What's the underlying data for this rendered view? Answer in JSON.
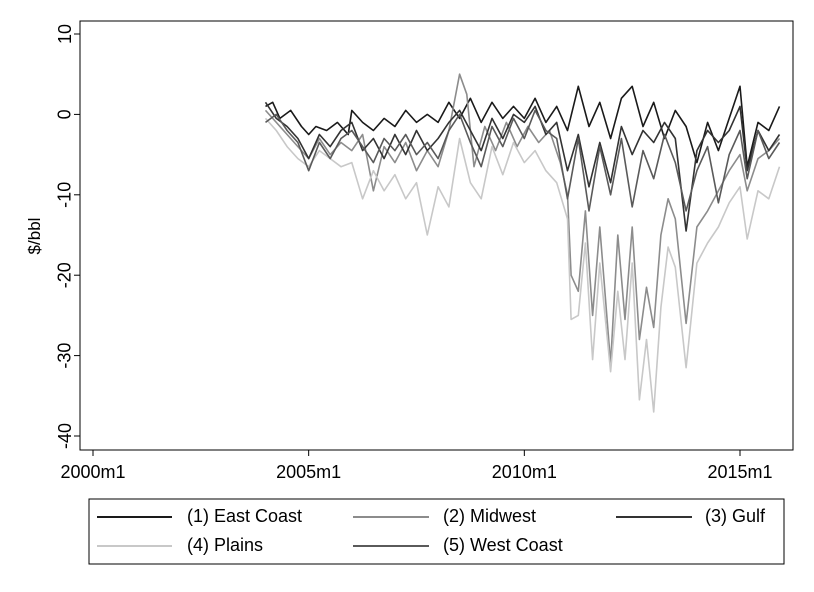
{
  "chart_data": {
    "type": "line",
    "title": "",
    "xlabel": "",
    "ylabel": "$/bbl",
    "xlim": [
      "2000m1",
      "2015m12"
    ],
    "ylim": [
      -42,
      10
    ],
    "x_ticks": [
      "2000m1",
      "2005m1",
      "2010m1",
      "2015m1"
    ],
    "y_ticks": [
      10,
      0,
      -10,
      -20,
      -30,
      -40
    ],
    "grid": false,
    "legend_position": "bottom",
    "series": [
      {
        "name": "(1) East Coast",
        "color": "#1a1a1a",
        "points": [
          [
            "2004m1",
            1.0
          ],
          [
            "2004m3",
            1.5
          ],
          [
            "2004m5",
            -0.5
          ],
          [
            "2004m8",
            0.5
          ],
          [
            "2004m11",
            -1.5
          ],
          [
            "2005m1",
            -2.5
          ],
          [
            "2005m3",
            -1.5
          ],
          [
            "2005m6",
            -2.0
          ],
          [
            "2005m9",
            -1.0
          ],
          [
            "2005m12",
            -2.5
          ],
          [
            "2006m1",
            0.5
          ],
          [
            "2006m4",
            -1.0
          ],
          [
            "2006m7",
            -2.0
          ],
          [
            "2006m10",
            -0.5
          ],
          [
            "2007m1",
            -1.5
          ],
          [
            "2007m4",
            0.5
          ],
          [
            "2007m7",
            -1.0
          ],
          [
            "2007m10",
            0.0
          ],
          [
            "2008m1",
            -1.0
          ],
          [
            "2008m4",
            1.5
          ],
          [
            "2008m7",
            -0.5
          ],
          [
            "2008m10",
            2.0
          ],
          [
            "2009m1",
            -1.0
          ],
          [
            "2009m4",
            1.5
          ],
          [
            "2009m7",
            -0.5
          ],
          [
            "2009m10",
            1.0
          ],
          [
            "2010m1",
            -0.5
          ],
          [
            "2010m4",
            2.0
          ],
          [
            "2010m7",
            -1.0
          ],
          [
            "2010m10",
            1.0
          ],
          [
            "2011m1",
            -2.0
          ],
          [
            "2011m4",
            3.5
          ],
          [
            "2011m7",
            -1.5
          ],
          [
            "2011m10",
            1.5
          ],
          [
            "2012m1",
            -3.0
          ],
          [
            "2012m4",
            2.0
          ],
          [
            "2012m7",
            3.5
          ],
          [
            "2012m10",
            -1.5
          ],
          [
            "2013m1",
            1.5
          ],
          [
            "2013m4",
            -3.0
          ],
          [
            "2013m7",
            0.5
          ],
          [
            "2013m10",
            -1.5
          ],
          [
            "2014m1",
            -6.0
          ],
          [
            "2014m4",
            -1.0
          ],
          [
            "2014m7",
            -4.5
          ],
          [
            "2014m10",
            -0.5
          ],
          [
            "2015m1",
            3.5
          ],
          [
            "2015m3",
            -6.5
          ],
          [
            "2015m6",
            -1.0
          ],
          [
            "2015m9",
            -2.0
          ],
          [
            "2015m12",
            1.0
          ]
        ]
      },
      {
        "name": "(2) Midwest",
        "color": "#8c8c8c",
        "points": [
          [
            "2004m1",
            0.5
          ],
          [
            "2004m4",
            -1.0
          ],
          [
            "2004m7",
            -2.5
          ],
          [
            "2004m10",
            -4.0
          ],
          [
            "2005m1",
            -5.5
          ],
          [
            "2005m4",
            -3.0
          ],
          [
            "2005m7",
            -5.0
          ],
          [
            "2005m10",
            -3.5
          ],
          [
            "2006m1",
            -4.5
          ],
          [
            "2006m4",
            -2.5
          ],
          [
            "2006m7",
            -9.5
          ],
          [
            "2006m10",
            -4.0
          ],
          [
            "2007m1",
            -6.0
          ],
          [
            "2007m4",
            -3.5
          ],
          [
            "2007m7",
            -7.0
          ],
          [
            "2007m10",
            -4.5
          ],
          [
            "2008m1",
            -6.5
          ],
          [
            "2008m4",
            -2.0
          ],
          [
            "2008m7",
            5.0
          ],
          [
            "2008m9",
            2.5
          ],
          [
            "2008m11",
            -6.5
          ],
          [
            "2009m2",
            -1.5
          ],
          [
            "2009m5",
            -4.5
          ],
          [
            "2009m8",
            -1.0
          ],
          [
            "2009m11",
            -4.0
          ],
          [
            "2010m2",
            -1.5
          ],
          [
            "2010m5",
            -3.5
          ],
          [
            "2010m8",
            -2.0
          ],
          [
            "2010m11",
            -6.0
          ],
          [
            "2011m1",
            -10.0
          ],
          [
            "2011m2",
            -20.0
          ],
          [
            "2011m4",
            -22.0
          ],
          [
            "2011m6",
            -12.0
          ],
          [
            "2011m8",
            -25.0
          ],
          [
            "2011m10",
            -14.0
          ],
          [
            "2012m1",
            -31.0
          ],
          [
            "2012m3",
            -15.0
          ],
          [
            "2012m5",
            -25.5
          ],
          [
            "2012m7",
            -14.0
          ],
          [
            "2012m9",
            -28.0
          ],
          [
            "2012m11",
            -21.5
          ],
          [
            "2013m1",
            -26.5
          ],
          [
            "2013m3",
            -15.0
          ],
          [
            "2013m5",
            -10.5
          ],
          [
            "2013m7",
            -13.0
          ],
          [
            "2013m10",
            -26.0
          ],
          [
            "2014m1",
            -14.0
          ],
          [
            "2014m4",
            -12.0
          ],
          [
            "2014m7",
            -9.5
          ],
          [
            "2014m10",
            -7.0
          ],
          [
            "2015m1",
            -5.0
          ],
          [
            "2015m3",
            -9.5
          ],
          [
            "2015m6",
            -5.5
          ],
          [
            "2015m9",
            -4.5
          ],
          [
            "2015m12",
            -3.0
          ]
        ]
      },
      {
        "name": "(3) Gulf",
        "color": "#333333",
        "points": [
          [
            "2004m1",
            1.5
          ],
          [
            "2004m4",
            -0.5
          ],
          [
            "2004m7",
            -1.5
          ],
          [
            "2004m10",
            -3.0
          ],
          [
            "2005m1",
            -5.5
          ],
          [
            "2005m4",
            -2.5
          ],
          [
            "2005m7",
            -4.0
          ],
          [
            "2005m10",
            -2.0
          ],
          [
            "2006m1",
            -1.0
          ],
          [
            "2006m4",
            -4.5
          ],
          [
            "2006m7",
            -3.0
          ],
          [
            "2006m10",
            -5.5
          ],
          [
            "2007m1",
            -2.5
          ],
          [
            "2007m4",
            -5.0
          ],
          [
            "2007m7",
            -2.0
          ],
          [
            "2007m10",
            -4.5
          ],
          [
            "2008m1",
            -3.0
          ],
          [
            "2008m4",
            -1.0
          ],
          [
            "2008m7",
            0.5
          ],
          [
            "2008m10",
            -2.0
          ],
          [
            "2009m1",
            -4.5
          ],
          [
            "2009m4",
            -0.5
          ],
          [
            "2009m7",
            -3.0
          ],
          [
            "2009m10",
            0.0
          ],
          [
            "2010m1",
            -1.0
          ],
          [
            "2010m4",
            1.0
          ],
          [
            "2010m7",
            -2.5
          ],
          [
            "2010m10",
            -1.0
          ],
          [
            "2011m1",
            -7.0
          ],
          [
            "2011m4",
            -2.5
          ],
          [
            "2011m7",
            -9.0
          ],
          [
            "2011m10",
            -3.5
          ],
          [
            "2012m1",
            -8.5
          ],
          [
            "2012m4",
            -1.5
          ],
          [
            "2012m7",
            -5.0
          ],
          [
            "2012m10",
            -2.0
          ],
          [
            "2013m1",
            -3.5
          ],
          [
            "2013m4",
            -1.0
          ],
          [
            "2013m7",
            -3.0
          ],
          [
            "2013m10",
            -14.5
          ],
          [
            "2014m1",
            -4.5
          ],
          [
            "2014m4",
            -2.0
          ],
          [
            "2014m7",
            -3.5
          ],
          [
            "2014m10",
            -2.0
          ],
          [
            "2015m1",
            1.0
          ],
          [
            "2015m3",
            -7.0
          ],
          [
            "2015m6",
            -2.0
          ],
          [
            "2015m9",
            -4.5
          ],
          [
            "2015m12",
            -2.5
          ]
        ]
      },
      {
        "name": "(4) Plains",
        "color": "#c8c8c8",
        "points": [
          [
            "2004m1",
            -0.5
          ],
          [
            "2004m4",
            -2.0
          ],
          [
            "2004m7",
            -4.0
          ],
          [
            "2004m10",
            -5.5
          ],
          [
            "2005m1",
            -6.5
          ],
          [
            "2005m4",
            -4.5
          ],
          [
            "2005m7",
            -5.5
          ],
          [
            "2005m10",
            -6.5
          ],
          [
            "2006m1",
            -6.0
          ],
          [
            "2006m4",
            -10.5
          ],
          [
            "2006m7",
            -7.0
          ],
          [
            "2006m10",
            -9.5
          ],
          [
            "2007m1",
            -7.5
          ],
          [
            "2007m4",
            -10.5
          ],
          [
            "2007m7",
            -8.5
          ],
          [
            "2007m10",
            -15.0
          ],
          [
            "2008m1",
            -9.0
          ],
          [
            "2008m4",
            -11.5
          ],
          [
            "2008m7",
            -3.0
          ],
          [
            "2008m10",
            -8.5
          ],
          [
            "2009m1",
            -10.5
          ],
          [
            "2009m4",
            -4.0
          ],
          [
            "2009m7",
            -7.5
          ],
          [
            "2009m10",
            -3.5
          ],
          [
            "2010m1",
            -6.0
          ],
          [
            "2010m4",
            -4.5
          ],
          [
            "2010m7",
            -7.0
          ],
          [
            "2010m10",
            -8.5
          ],
          [
            "2011m1",
            -13.0
          ],
          [
            "2011m2",
            -25.5
          ],
          [
            "2011m4",
            -25.0
          ],
          [
            "2011m6",
            -16.0
          ],
          [
            "2011m8",
            -30.5
          ],
          [
            "2011m10",
            -18.5
          ],
          [
            "2012m1",
            -32.0
          ],
          [
            "2012m3",
            -22.0
          ],
          [
            "2012m5",
            -30.5
          ],
          [
            "2012m7",
            -18.5
          ],
          [
            "2012m9",
            -35.5
          ],
          [
            "2012m11",
            -28.0
          ],
          [
            "2013m1",
            -37.0
          ],
          [
            "2013m3",
            -24.0
          ],
          [
            "2013m5",
            -16.5
          ],
          [
            "2013m7",
            -19.0
          ],
          [
            "2013m10",
            -31.5
          ],
          [
            "2014m1",
            -18.5
          ],
          [
            "2014m4",
            -16.0
          ],
          [
            "2014m7",
            -14.0
          ],
          [
            "2014m10",
            -11.0
          ],
          [
            "2015m1",
            -9.0
          ],
          [
            "2015m3",
            -15.5
          ],
          [
            "2015m6",
            -9.5
          ],
          [
            "2015m9",
            -10.5
          ],
          [
            "2015m12",
            -6.5
          ]
        ]
      },
      {
        "name": "(5) West Coast",
        "color": "#5a5a5a",
        "points": [
          [
            "2004m1",
            -1.0
          ],
          [
            "2004m4",
            0.0
          ],
          [
            "2004m7",
            -2.0
          ],
          [
            "2004m10",
            -3.5
          ],
          [
            "2005m1",
            -7.0
          ],
          [
            "2005m4",
            -3.5
          ],
          [
            "2005m7",
            -5.5
          ],
          [
            "2005m10",
            -3.0
          ],
          [
            "2006m1",
            -2.0
          ],
          [
            "2006m4",
            -4.0
          ],
          [
            "2006m7",
            -6.0
          ],
          [
            "2006m10",
            -3.0
          ],
          [
            "2007m1",
            -4.5
          ],
          [
            "2007m4",
            -2.5
          ],
          [
            "2007m7",
            -5.0
          ],
          [
            "2007m10",
            -3.5
          ],
          [
            "2008m1",
            -5.5
          ],
          [
            "2008m4",
            -2.0
          ],
          [
            "2008m7",
            0.0
          ],
          [
            "2008m10",
            -3.5
          ],
          [
            "2009m1",
            -6.5
          ],
          [
            "2009m4",
            -1.5
          ],
          [
            "2009m7",
            -4.0
          ],
          [
            "2009m10",
            -0.5
          ],
          [
            "2010m1",
            -3.0
          ],
          [
            "2010m4",
            0.5
          ],
          [
            "2010m7",
            -2.0
          ],
          [
            "2010m10",
            -3.0
          ],
          [
            "2011m1",
            -10.5
          ],
          [
            "2011m4",
            -3.0
          ],
          [
            "2011m7",
            -12.0
          ],
          [
            "2011m10",
            -4.0
          ],
          [
            "2012m1",
            -10.0
          ],
          [
            "2012m4",
            -3.0
          ],
          [
            "2012m7",
            -11.5
          ],
          [
            "2012m10",
            -4.5
          ],
          [
            "2013m1",
            -8.0
          ],
          [
            "2013m4",
            -2.5
          ],
          [
            "2013m7",
            -6.0
          ],
          [
            "2013m10",
            -12.0
          ],
          [
            "2014m1",
            -7.0
          ],
          [
            "2014m4",
            -4.0
          ],
          [
            "2014m7",
            -11.0
          ],
          [
            "2014m10",
            -5.0
          ],
          [
            "2015m1",
            -2.0
          ],
          [
            "2015m3",
            -8.0
          ],
          [
            "2015m6",
            -2.0
          ],
          [
            "2015m9",
            -5.5
          ],
          [
            "2015m12",
            -3.5
          ]
        ]
      }
    ]
  }
}
